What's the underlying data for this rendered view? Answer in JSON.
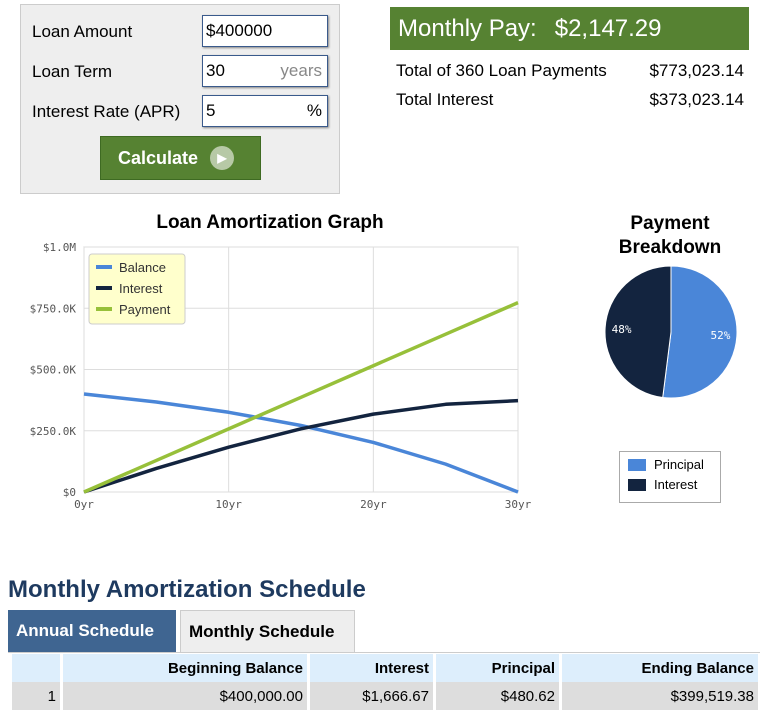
{
  "form": {
    "loan_amount_label": "Loan Amount",
    "loan_amount_value": "$400000",
    "loan_term_label": "Loan Term",
    "loan_term_value": "30",
    "loan_term_unit": "years",
    "rate_label": "Interest Rate (APR)",
    "rate_value": "5",
    "rate_unit": "%",
    "calculate_label": "Calculate"
  },
  "results": {
    "monthly_pay_label": "Monthly Pay:",
    "monthly_pay_value": "$2,147.29",
    "total_payments_label": "Total of 360 Loan Payments",
    "total_payments_value": "$773,023.14",
    "total_interest_label": "Total Interest",
    "total_interest_value": "$373,023.14"
  },
  "colors": {
    "green": "#568232",
    "balance": "#4a86d8",
    "interest": "#13243f",
    "payment": "#97c03a",
    "tab_active": "#3f6591"
  },
  "chart_data": [
    {
      "type": "line",
      "title": "Loan Amortization Graph",
      "x": [
        0,
        5,
        10,
        15,
        20,
        25,
        30
      ],
      "xticks": [
        "0yr",
        "10yr",
        "20yr",
        "30yr"
      ],
      "xtick_values": [
        0,
        10,
        20,
        30
      ],
      "yticks": [
        "$0",
        "$250.0K",
        "$500.0K",
        "$750.0K",
        "$1.0M"
      ],
      "ytick_values": [
        0,
        250000,
        500000,
        750000,
        1000000
      ],
      "ylim": [
        0,
        1000000
      ],
      "xlim": [
        0,
        30
      ],
      "grid": true,
      "legend": "top-left",
      "series": [
        {
          "name": "Balance",
          "values": [
            400000,
            367315,
            325367,
            271535,
            202442,
            113781,
            0
          ]
        },
        {
          "name": "Interest",
          "values": [
            0,
            96152,
            183042,
            258047,
            317792,
            357968,
            373023
          ]
        },
        {
          "name": "Payment",
          "values": [
            0,
            128837,
            257675,
            386512,
            515350,
            644187,
            773023
          ]
        }
      ]
    },
    {
      "type": "pie",
      "title": "Payment Breakdown",
      "categories": [
        "Principal",
        "Interest"
      ],
      "values": [
        52,
        48
      ],
      "labels": [
        "52%",
        "48%"
      ],
      "legend": "bottom"
    }
  ],
  "schedule": {
    "title": "Monthly Amortization Schedule",
    "tabs": [
      "Annual Schedule",
      "Monthly Schedule"
    ],
    "headers": [
      "",
      "Beginning Balance",
      "Interest",
      "Principal",
      "Ending Balance"
    ],
    "rows": [
      [
        "1",
        "$400,000.00",
        "$1,666.67",
        "$480.62",
        "$399,519.38"
      ]
    ]
  }
}
